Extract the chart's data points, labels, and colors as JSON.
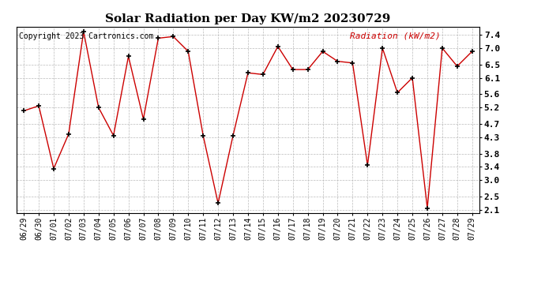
{
  "title": "Solar Radiation per Day KW/m2 20230729",
  "copyright_text": "Copyright 2023 Cartronics.com",
  "legend_label": "Radiation (kW/m2)",
  "dates": [
    "06/29",
    "06/30",
    "07/01",
    "07/02",
    "07/03",
    "07/04",
    "07/05",
    "07/06",
    "07/07",
    "07/08",
    "07/09",
    "07/10",
    "07/11",
    "07/12",
    "07/13",
    "07/14",
    "07/15",
    "07/16",
    "07/17",
    "07/18",
    "07/19",
    "07/20",
    "07/21",
    "07/22",
    "07/23",
    "07/24",
    "07/25",
    "07/26",
    "07/27",
    "07/28",
    "07/29"
  ],
  "values": [
    5.1,
    5.25,
    3.35,
    4.4,
    7.5,
    5.2,
    4.35,
    6.75,
    4.85,
    7.3,
    7.35,
    6.9,
    4.35,
    2.3,
    4.35,
    6.25,
    6.2,
    7.05,
    6.35,
    6.35,
    6.9,
    6.6,
    6.55,
    3.45,
    7.0,
    5.65,
    6.1,
    2.15,
    7.0,
    6.45,
    6.9
  ],
  "line_color": "#cc0000",
  "marker_color": "#000000",
  "background_color": "#ffffff",
  "grid_color": "#bbbbbb",
  "title_fontsize": 11,
  "copyright_fontsize": 7,
  "legend_fontsize": 8,
  "tick_fontsize": 7,
  "legend_color": "#cc0000",
  "ylim": [
    2.0,
    7.65
  ],
  "yticks": [
    2.1,
    2.5,
    3.0,
    3.4,
    3.8,
    4.3,
    4.7,
    5.2,
    5.6,
    6.1,
    6.5,
    7.0,
    7.4
  ]
}
